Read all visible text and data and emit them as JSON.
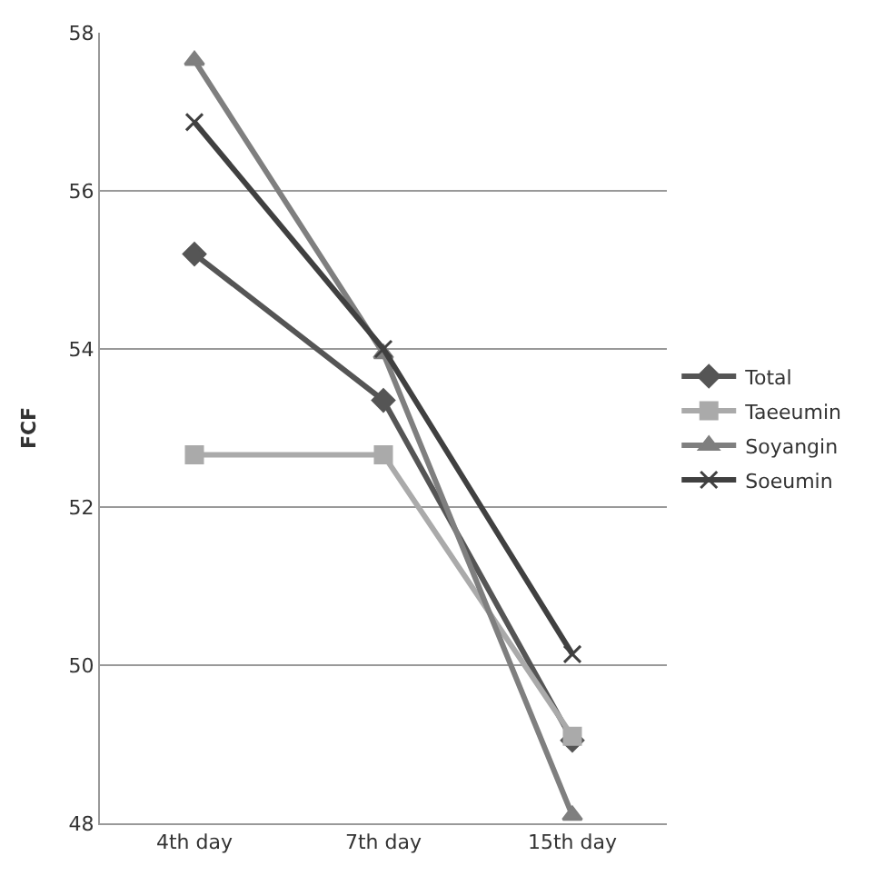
{
  "chart_data": {
    "type": "line",
    "ylabel": "FCF",
    "categories": [
      "4th day",
      "7th day",
      "15th day"
    ],
    "ylim": [
      48,
      58
    ],
    "yticks": [
      48,
      50,
      52,
      54,
      56,
      58
    ],
    "grid": "y",
    "legend": "right",
    "series": [
      {
        "name": "Total",
        "color": "#555555",
        "marker": "diamond",
        "values": [
          55.2,
          53.35,
          49.05
        ]
      },
      {
        "name": "Taeeumin",
        "color": "#aaaaaa",
        "marker": "square",
        "values": [
          52.66,
          52.66,
          49.1
        ]
      },
      {
        "name": "Soyangin",
        "color": "#7f7f7f",
        "marker": "triangle",
        "values": [
          57.65,
          53.94,
          48.1
        ]
      },
      {
        "name": "Soeumin",
        "color": "#404040",
        "marker": "cross",
        "values": [
          56.87,
          54.0,
          50.14
        ]
      }
    ]
  }
}
